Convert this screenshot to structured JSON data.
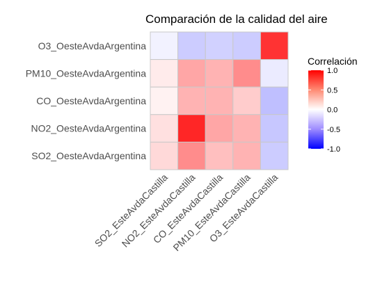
{
  "chart_data": {
    "type": "heatmap",
    "title": "Comparación de la calidad del aire",
    "xlabel": "",
    "ylabel": "",
    "x_categories": [
      "SO2_EsteAvdaCastilla",
      "NO2_EsteAvdaCastilla",
      "CO_EsteAvdaCastilla",
      "PM10_EsteAvdaCastilla",
      "O3_EsteAvdaCastilla"
    ],
    "y_categories": [
      "O3_OesteAvdaArgentina",
      "PM10_OesteAvdaArgentina",
      "CO_OesteAvdaArgentina",
      "NO2_OesteAvdaArgentina",
      "SO2_OesteAvdaArgentina"
    ],
    "values": [
      [
        -0.05,
        -0.2,
        -0.18,
        -0.2,
        0.8
      ],
      [
        0.08,
        0.35,
        0.3,
        0.45,
        -0.08
      ],
      [
        0.05,
        0.3,
        0.3,
        0.2,
        -0.25
      ],
      [
        0.12,
        0.85,
        0.35,
        0.3,
        -0.22
      ],
      [
        0.15,
        0.45,
        0.25,
        0.3,
        -0.2
      ]
    ],
    "legend": {
      "title": "Correlación",
      "ticks": [
        "1.0",
        "0.5",
        "0.0",
        "-0.5",
        "-1.0"
      ],
      "range": [
        -1,
        1
      ],
      "position": "right"
    },
    "colors": {
      "low": "#0000ff",
      "mid": "#ffffff",
      "high": "#ff0000"
    }
  }
}
